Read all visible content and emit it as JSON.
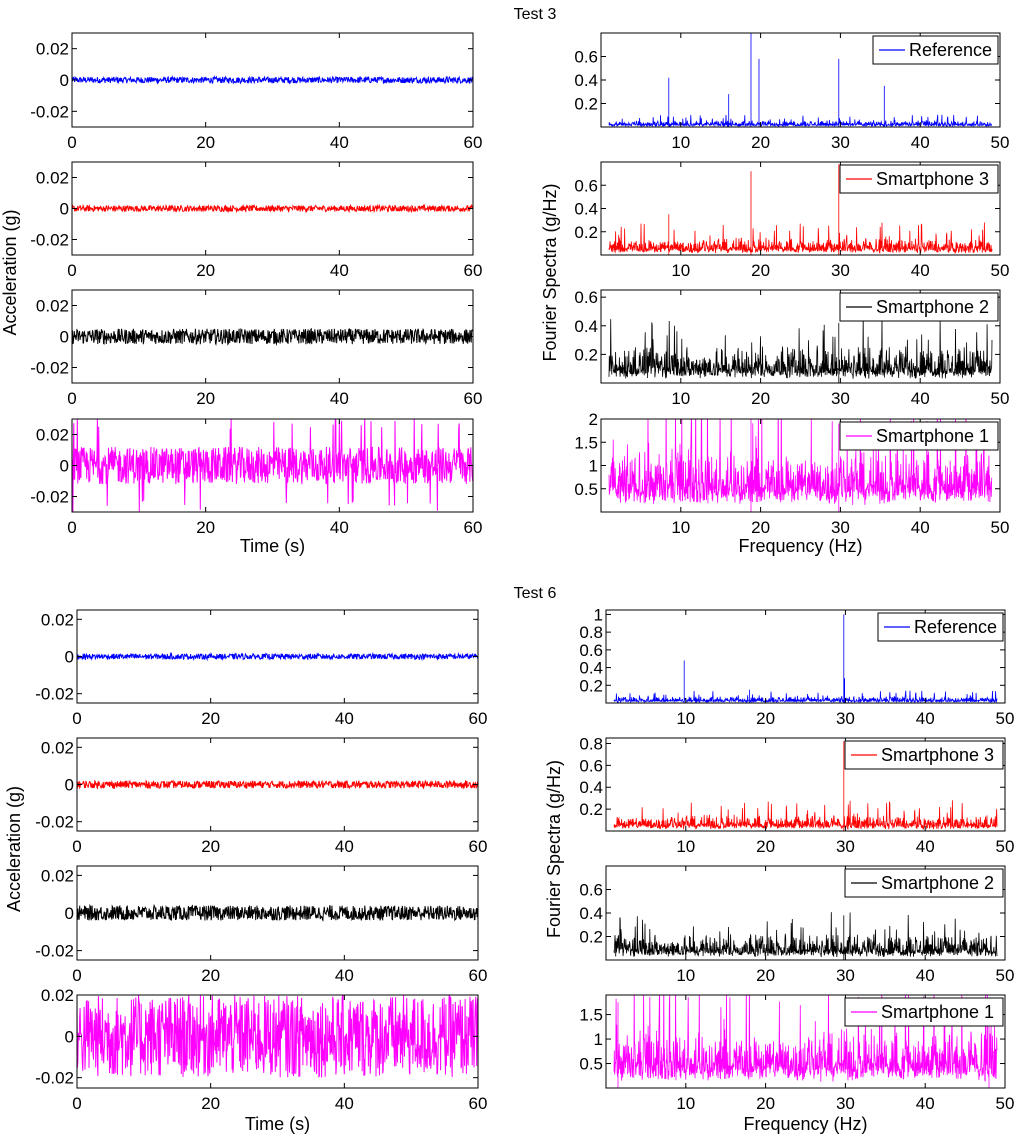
{
  "figure": {
    "tests": [
      {
        "title": "Test 3",
        "time_panel": {
          "xlabel": "Time (s)",
          "ylabel": "Acceleration (g)",
          "xlim": [
            0,
            60
          ],
          "xticks": [
            0,
            20,
            40,
            60
          ],
          "xtick_labels": [
            "0",
            "20",
            "40",
            "60"
          ]
        },
        "freq_panel": {
          "xlabel": "Frequency (Hz)",
          "ylabel": "Fourier Spectra (g/Hz)",
          "xlim": [
            0,
            50
          ],
          "xticks": [
            10,
            20,
            30,
            40,
            50
          ],
          "xtick_labels": [
            "10",
            "20",
            "30",
            "40",
            "50"
          ]
        }
      },
      {
        "title": "Test 6",
        "time_panel": {
          "xlabel": "Time (s)",
          "ylabel": "Acceleration (g)",
          "xlim": [
            0,
            60
          ],
          "xticks": [
            0,
            20,
            40,
            60
          ],
          "xtick_labels": [
            "0",
            "20",
            "40",
            "60"
          ]
        },
        "freq_panel": {
          "xlabel": "Frequency (Hz)",
          "ylabel": "Fourier Spectra (g/Hz)",
          "xlim": [
            0,
            50
          ],
          "xticks": [
            10,
            20,
            30,
            40,
            50
          ],
          "xtick_labels": [
            "10",
            "20",
            "30",
            "40",
            "50"
          ]
        }
      }
    ]
  },
  "chart_data": [
    {
      "type": "line",
      "test": "Test 3",
      "panel": "time",
      "series": [
        {
          "color": "#0000ff",
          "amplitude": 0.002,
          "mean": 0
        }
      ],
      "x_range": [
        0,
        60
      ],
      "ylim": [
        -0.03,
        0.03
      ],
      "yticks": [
        -0.02,
        0,
        0.02
      ],
      "ytick_labels": [
        "-0.02",
        "0",
        "0.02"
      ],
      "grid": false
    },
    {
      "type": "line",
      "test": "Test 3",
      "panel": "time",
      "series": [
        {
          "color": "#ff0000",
          "amplitude": 0.002,
          "mean": 0
        }
      ],
      "x_range": [
        0,
        60
      ],
      "ylim": [
        -0.03,
        0.03
      ],
      "yticks": [
        -0.02,
        0,
        0.02
      ],
      "ytick_labels": [
        "-0.02",
        "0",
        "0.02"
      ],
      "grid": false
    },
    {
      "type": "line",
      "test": "Test 3",
      "panel": "time",
      "series": [
        {
          "color": "#000000",
          "amplitude": 0.005,
          "mean": 0
        }
      ],
      "x_range": [
        0,
        60
      ],
      "ylim": [
        -0.03,
        0.03
      ],
      "yticks": [
        -0.02,
        0,
        0.02
      ],
      "ytick_labels": [
        "-0.02",
        "0",
        "0.02"
      ],
      "grid": false
    },
    {
      "type": "line",
      "test": "Test 3",
      "panel": "time",
      "series": [
        {
          "color": "#ff00ff",
          "amplitude": 0.012,
          "mean": 0,
          "spike_max": 0.03
        }
      ],
      "x_range": [
        0,
        60
      ],
      "ylim": [
        -0.03,
        0.03
      ],
      "yticks": [
        -0.02,
        0,
        0.02
      ],
      "ytick_labels": [
        "-0.02",
        "0",
        "0.02"
      ],
      "grid": false
    },
    {
      "type": "line",
      "test": "Test 3",
      "panel": "frequency",
      "series": [
        {
          "name": "Reference",
          "color": "#0000ff",
          "baseline": 0.03,
          "peaks": [
            [
              8.5,
              0.42
            ],
            [
              16,
              0.28
            ],
            [
              18.8,
              0.8
            ],
            [
              19.8,
              0.58
            ],
            [
              29.8,
              0.58
            ],
            [
              35.5,
              0.35
            ]
          ]
        }
      ],
      "x_range": [
        1,
        49
      ],
      "ylim": [
        0,
        0.8
      ],
      "yticks": [
        0.2,
        0.4,
        0.6
      ],
      "ytick_labels": [
        "0.2",
        "0.4",
        "0.6"
      ],
      "legend": "top-right",
      "grid": false
    },
    {
      "type": "line",
      "test": "Test 3",
      "panel": "frequency",
      "series": [
        {
          "name": "Smartphone 3",
          "color": "#ff0000",
          "baseline": 0.08,
          "peaks": [
            [
              8.5,
              0.35
            ],
            [
              18.8,
              0.72
            ],
            [
              29.8,
              0.78
            ]
          ]
        }
      ],
      "x_range": [
        1,
        49
      ],
      "ylim": [
        0,
        0.8
      ],
      "yticks": [
        0.2,
        0.4,
        0.6
      ],
      "ytick_labels": [
        "0.2",
        "0.4",
        "0.6"
      ],
      "legend": "top-right",
      "grid": false
    },
    {
      "type": "line",
      "test": "Test 3",
      "panel": "frequency",
      "series": [
        {
          "name": "Smartphone 2",
          "color": "#000000",
          "baseline": 0.14,
          "peaks": [
            [
              29.8,
              0.42
            ]
          ]
        }
      ],
      "x_range": [
        1,
        49
      ],
      "ylim": [
        0,
        0.65
      ],
      "yticks": [
        0.2,
        0.4,
        0.6
      ],
      "ytick_labels": [
        "0.2",
        "0.4",
        "0.6"
      ],
      "legend": "top-right",
      "grid": false
    },
    {
      "type": "line",
      "test": "Test 3",
      "panel": "frequency",
      "series": [
        {
          "name": "Smartphone 1",
          "color": "#ff00ff",
          "baseline": 0.75,
          "peaks": [
            [
              18.8,
              2.0
            ],
            [
              29.8,
              1.9
            ]
          ]
        }
      ],
      "x_range": [
        1,
        49
      ],
      "ylim": [
        0,
        2
      ],
      "yticks": [
        0.5,
        1,
        1.5,
        2
      ],
      "ytick_labels": [
        "0.5",
        "1",
        "1.5",
        "2"
      ],
      "legend": "top-right",
      "grid": false
    },
    {
      "type": "line",
      "test": "Test 6",
      "panel": "time",
      "series": [
        {
          "color": "#0000ff",
          "amplitude": 0.0015,
          "mean": 0
        }
      ],
      "x_range": [
        0,
        60
      ],
      "ylim": [
        -0.025,
        0.025
      ],
      "yticks": [
        -0.02,
        0,
        0.02
      ],
      "ytick_labels": [
        "-0.02",
        "0",
        "0.02"
      ],
      "grid": false
    },
    {
      "type": "line",
      "test": "Test 6",
      "panel": "time",
      "series": [
        {
          "color": "#ff0000",
          "amplitude": 0.002,
          "mean": 0
        }
      ],
      "x_range": [
        0,
        60
      ],
      "ylim": [
        -0.025,
        0.025
      ],
      "yticks": [
        -0.02,
        0,
        0.02
      ],
      "ytick_labels": [
        "-0.02",
        "0",
        "0.02"
      ],
      "grid": false
    },
    {
      "type": "line",
      "test": "Test 6",
      "panel": "time",
      "series": [
        {
          "color": "#000000",
          "amplitude": 0.004,
          "mean": 0
        }
      ],
      "x_range": [
        0,
        60
      ],
      "ylim": [
        -0.025,
        0.025
      ],
      "yticks": [
        -0.02,
        0,
        0.02
      ],
      "ytick_labels": [
        "-0.02",
        "0",
        "0.02"
      ],
      "grid": false
    },
    {
      "type": "line",
      "test": "Test 6",
      "panel": "time",
      "series": [
        {
          "color": "#ff00ff",
          "amplitude": 0.02,
          "mean": 0
        }
      ],
      "x_range": [
        0,
        60
      ],
      "ylim": [
        -0.025,
        0.02
      ],
      "yticks": [
        -0.02,
        0,
        0.02
      ],
      "ytick_labels": [
        "-0.02",
        "0",
        "0.02"
      ],
      "grid": false
    },
    {
      "type": "line",
      "test": "Test 6",
      "panel": "frequency",
      "series": [
        {
          "name": "Reference",
          "color": "#0000ff",
          "baseline": 0.04,
          "peaks": [
            [
              9.8,
              0.48
            ],
            [
              18,
              0.15
            ],
            [
              29.8,
              1.0
            ],
            [
              29.9,
              0.28
            ]
          ]
        }
      ],
      "x_range": [
        1,
        49
      ],
      "ylim": [
        0,
        1.05
      ],
      "yticks": [
        0.2,
        0.4,
        0.6,
        0.8,
        1
      ],
      "ytick_labels": [
        "0.2",
        "0.4",
        "0.6",
        "0.8",
        "1"
      ],
      "legend": "top-right",
      "grid": false
    },
    {
      "type": "line",
      "test": "Test 6",
      "panel": "frequency",
      "series": [
        {
          "name": "Smartphone 3",
          "color": "#ff0000",
          "baseline": 0.08,
          "peaks": [
            [
              29.8,
              0.82
            ]
          ]
        }
      ],
      "x_range": [
        1,
        49
      ],
      "ylim": [
        0,
        0.85
      ],
      "yticks": [
        0.2,
        0.4,
        0.6,
        0.8
      ],
      "ytick_labels": [
        "0.2",
        "0.4",
        "0.6",
        "0.8"
      ],
      "legend": "top-right",
      "grid": false
    },
    {
      "type": "line",
      "test": "Test 6",
      "panel": "frequency",
      "series": [
        {
          "name": "Smartphone 2",
          "color": "#000000",
          "baseline": 0.12,
          "peaks": [
            [
              29.8,
              0.38
            ]
          ]
        }
      ],
      "x_range": [
        1,
        49
      ],
      "ylim": [
        0,
        0.8
      ],
      "yticks": [
        0.2,
        0.4,
        0.6
      ],
      "ytick_labels": [
        "0.2",
        "0.4",
        "0.6"
      ],
      "legend": "top-right",
      "grid": false
    },
    {
      "type": "line",
      "test": "Test 6",
      "panel": "frequency",
      "series": [
        {
          "name": "Smartphone 1",
          "color": "#ff00ff",
          "baseline": 0.65,
          "peaks": [
            [
              1.5,
              1.75
            ],
            [
              48,
              1.25
            ]
          ]
        }
      ],
      "x_range": [
        1,
        49
      ],
      "ylim": [
        0,
        1.9
      ],
      "yticks": [
        0.5,
        1,
        1.5
      ],
      "ytick_labels": [
        "0.5",
        "1",
        "1.5"
      ],
      "legend": "top-right",
      "grid": false
    }
  ]
}
